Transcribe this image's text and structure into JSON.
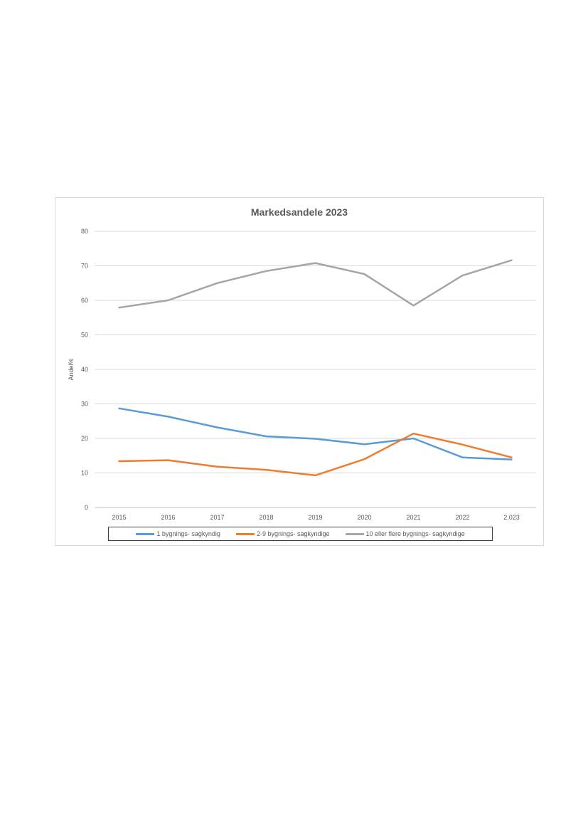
{
  "chart_data": {
    "type": "line",
    "title": "Markedsandele 2023",
    "xlabel": "",
    "ylabel": "Andel%",
    "categories": [
      "2015",
      "2016",
      "2017",
      "2018",
      "2019",
      "2020",
      "2021",
      "2022",
      "2.023"
    ],
    "ylim": [
      0,
      80
    ],
    "yticks": [
      0,
      10,
      20,
      30,
      40,
      50,
      60,
      70,
      80
    ],
    "grid": true,
    "legend_position": "bottom",
    "series": [
      {
        "name": "1 bygnings- sagkyndig",
        "color": "#5b9bd5",
        "values": [
          28.7,
          26.3,
          23.2,
          20.6,
          19.9,
          18.3,
          20.0,
          14.5,
          13.9
        ]
      },
      {
        "name": "2-9 bygnings- sagkyndige",
        "color": "#ed7d31",
        "values": [
          13.4,
          13.7,
          11.8,
          10.9,
          9.3,
          14.0,
          21.4,
          18.2,
          14.5
        ]
      },
      {
        "name": "10 eller flere bygnings- sagkyndige",
        "color": "#a5a5a5",
        "values": [
          57.9,
          60.0,
          65.0,
          68.5,
          70.8,
          67.6,
          58.5,
          67.2,
          71.6
        ]
      }
    ]
  }
}
